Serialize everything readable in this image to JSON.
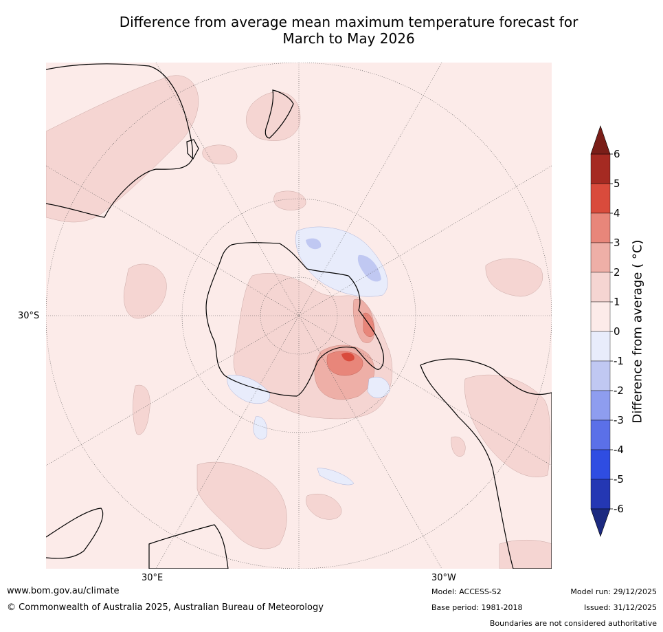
{
  "title_line1": "Difference from average mean maximum temperature forecast for",
  "title_line2": "March to May 2026",
  "labels": {
    "lat": "30°S",
    "lon_east": "30°E",
    "lon_west": "30°W"
  },
  "colorbar": {
    "title": "Difference from average ( °C)",
    "ticks": [
      "6",
      "5",
      "4",
      "3",
      "2",
      "1",
      "0",
      "-1",
      "-2",
      "-3",
      "-4",
      "-5",
      "-6"
    ],
    "colors": [
      "#a52a22",
      "#d94b3c",
      "#e8867a",
      "#eeafa7",
      "#f5d5d2",
      "#fcebe9",
      "#e8ecfb",
      "#c0c8f2",
      "#8e9def",
      "#5b70e8",
      "#2f4de2",
      "#2437b3"
    ],
    "over_color": "#7a1e18",
    "under_color": "#1c2a80"
  },
  "footer": {
    "website": "www.bom.gov.au/climate",
    "copyright": "© Commonwealth of Australia 2025, Australian Bureau of Meteorology",
    "model": "Model: ACCESS-S2",
    "base_period": "Base period: 1981-2018",
    "model_run": "Model run: 29/12/2025",
    "issued": "Issued: 31/12/2025",
    "disclaimer": "Boundaries are not considered authoritative"
  }
}
